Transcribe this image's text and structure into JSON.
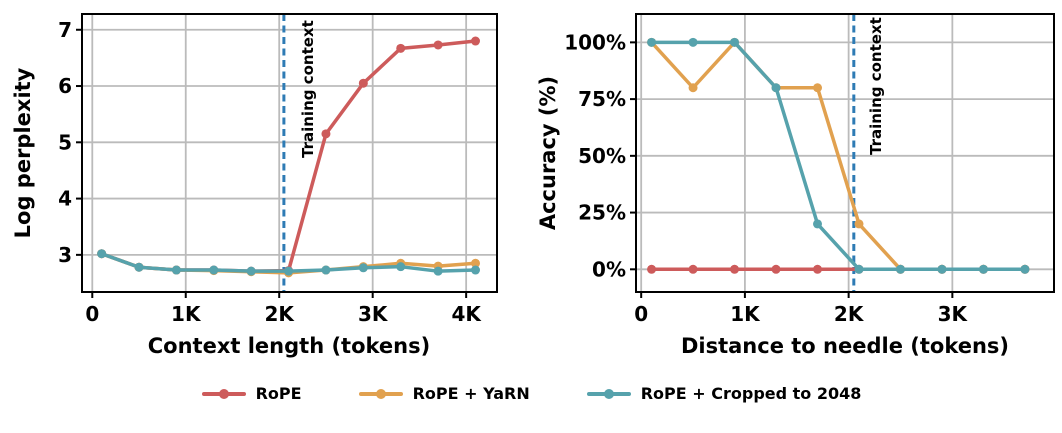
{
  "legend": {
    "items": [
      {
        "label": "RoPE",
        "color": "#cd5b5b"
      },
      {
        "label": "RoPE + YaRN",
        "color": "#e1a14f"
      },
      {
        "label": "RoPE + Cropped to 2048",
        "color": "#56a2ac"
      }
    ]
  },
  "colors": {
    "vline": "#2e7bb4",
    "vline_label": "#50697a",
    "grid": "#bbbbbb",
    "axis": "#000000"
  },
  "chart_data": [
    {
      "type": "line",
      "title": "",
      "xlabel": "Context length (tokens)",
      "ylabel": "Log perplexity",
      "x": [
        0.1,
        0.5,
        0.9,
        1.3,
        1.7,
        2.1,
        2.5,
        2.9,
        3.3,
        3.7,
        4.1
      ],
      "series": [
        {
          "name": "RoPE",
          "values": [
            3.02,
            2.78,
            2.73,
            2.73,
            2.71,
            2.72,
            5.15,
            6.05,
            6.67,
            6.73,
            6.8
          ]
        },
        {
          "name": "RoPE + YaRN",
          "values": [
            3.02,
            2.78,
            2.73,
            2.72,
            2.7,
            2.68,
            2.73,
            2.79,
            2.85,
            2.8,
            2.85
          ]
        },
        {
          "name": "RoPE + Cropped to 2048",
          "values": [
            3.02,
            2.78,
            2.73,
            2.73,
            2.71,
            2.71,
            2.73,
            2.77,
            2.79,
            2.71,
            2.73
          ]
        }
      ],
      "xlim": [
        -0.11,
        4.33
      ],
      "ylim": [
        2.34,
        7.28
      ],
      "xticks": {
        "values": [
          0,
          1,
          2,
          3,
          4
        ],
        "labels": [
          "0",
          "1K",
          "2K",
          "3K",
          "4K"
        ]
      },
      "yticks": {
        "values": [
          3,
          4,
          5,
          6,
          7
        ],
        "labels": [
          "3",
          "4",
          "5",
          "6",
          "7"
        ]
      },
      "vline": {
        "x": 2.05,
        "label": "Training context"
      },
      "grid": true,
      "legend_position": "below-figure"
    },
    {
      "type": "line",
      "title": "",
      "xlabel": "Distance to needle (tokens)",
      "ylabel": "Accuracy (%)",
      "x": [
        0.1,
        0.5,
        0.9,
        1.3,
        1.7,
        2.1,
        2.5,
        2.9,
        3.3,
        3.7
      ],
      "series": [
        {
          "name": "RoPE",
          "values": [
            0,
            0,
            0,
            0,
            0,
            0,
            0,
            0,
            0,
            0
          ]
        },
        {
          "name": "RoPE + YaRN",
          "values": [
            100,
            80,
            100,
            80,
            80,
            20,
            0,
            0,
            0,
            0
          ]
        },
        {
          "name": "RoPE + Cropped to 2048",
          "values": [
            100,
            100,
            100,
            80,
            20,
            0,
            0,
            0,
            0,
            0
          ]
        }
      ],
      "xlim": [
        -0.05,
        3.98
      ],
      "ylim": [
        -10,
        112.5
      ],
      "xticks": {
        "values": [
          0,
          1,
          2,
          3
        ],
        "labels": [
          "0",
          "1K",
          "2K",
          "3K"
        ]
      },
      "yticks": {
        "values": [
          0,
          25,
          50,
          75,
          100
        ],
        "labels": [
          "0%",
          "25%",
          "50%",
          "75%",
          "100%"
        ]
      },
      "vline": {
        "x": 2.05,
        "label": "Training context"
      },
      "grid": true,
      "legend_position": "below-figure"
    }
  ]
}
